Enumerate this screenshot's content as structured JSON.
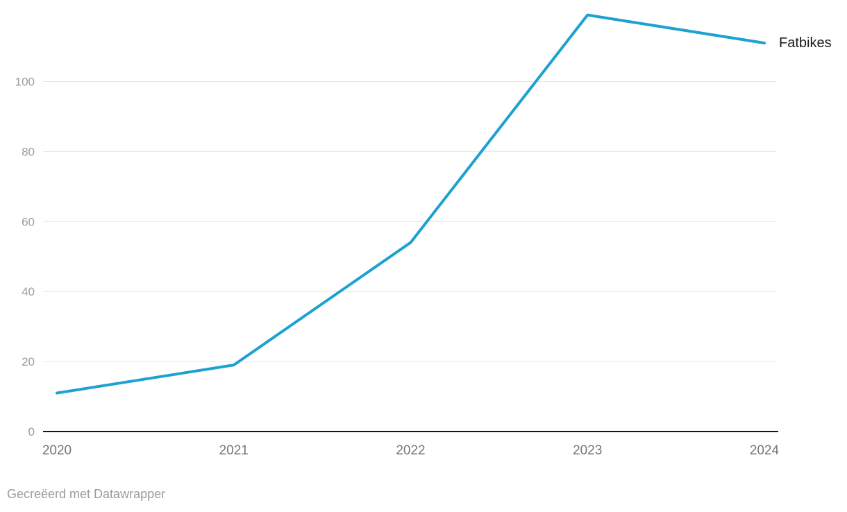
{
  "chart_data": {
    "type": "line",
    "title": "",
    "xlabel": "",
    "ylabel": "",
    "categories": [
      "2020",
      "2021",
      "2022",
      "2023",
      "2024"
    ],
    "series": [
      {
        "name": "Fatbikes",
        "values": [
          11,
          19,
          54,
          119,
          111
        ]
      }
    ],
    "yticks": [
      0,
      20,
      40,
      60,
      80,
      100
    ],
    "ylim": [
      0,
      120
    ],
    "grid": "horizontal",
    "legend_position": "end-of-line-right"
  },
  "footer": {
    "credit": "Gecreëerd met Datawrapper"
  },
  "colors": {
    "line": "#1DA1D2",
    "grid": "#E6E6E6",
    "axis": "#141414",
    "y_tick_text": "#9B9B9B",
    "x_tick_text": "#757575",
    "series_label_text": "#1A1A1A",
    "footer_text": "#9B9B9B",
    "background": "#FFFFFF"
  }
}
